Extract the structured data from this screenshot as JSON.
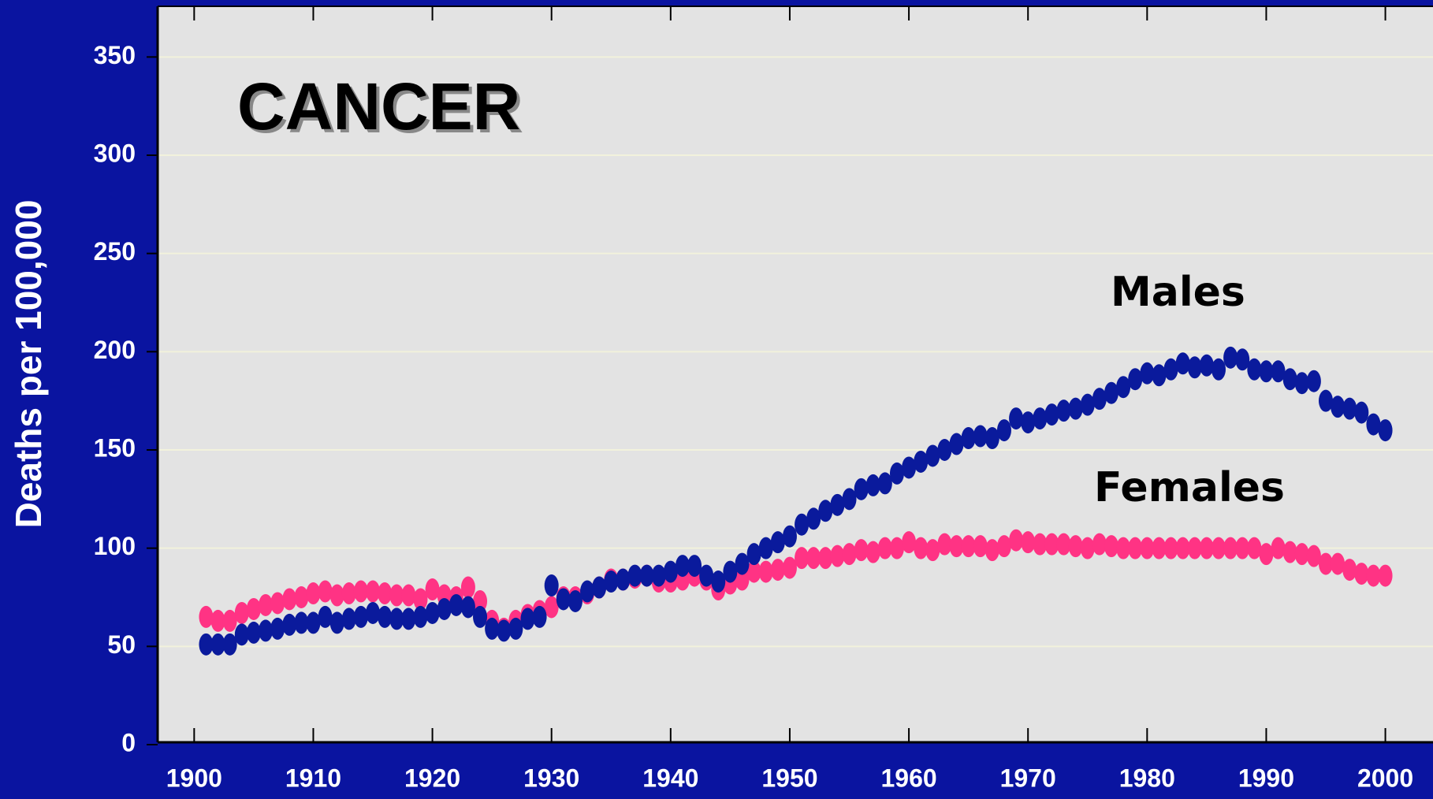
{
  "chart_data": {
    "type": "scatter",
    "y_label": "Deaths per 100,000",
    "annotations": [
      "CANCER",
      "Males",
      "Females"
    ],
    "xlim": [
      1897,
      2004
    ],
    "xticks": [
      1900,
      1910,
      1920,
      1930,
      1940,
      1950,
      1960,
      1970,
      1980,
      1990,
      2000
    ],
    "ylim": [
      0,
      375
    ],
    "yticks": [
      0,
      50,
      100,
      150,
      200,
      250,
      300,
      350
    ],
    "grid": true,
    "x": [
      1901,
      1902,
      1903,
      1904,
      1905,
      1906,
      1907,
      1908,
      1909,
      1910,
      1911,
      1912,
      1913,
      1914,
      1915,
      1916,
      1917,
      1918,
      1919,
      1920,
      1921,
      1922,
      1923,
      1924,
      1925,
      1926,
      1927,
      1928,
      1929,
      1930,
      1931,
      1932,
      1933,
      1934,
      1935,
      1936,
      1937,
      1938,
      1939,
      1940,
      1941,
      1942,
      1943,
      1944,
      1945,
      1946,
      1947,
      1948,
      1949,
      1950,
      1951,
      1952,
      1953,
      1954,
      1955,
      1956,
      1957,
      1958,
      1959,
      1960,
      1961,
      1962,
      1963,
      1964,
      1965,
      1966,
      1967,
      1968,
      1969,
      1970,
      1971,
      1972,
      1973,
      1974,
      1975,
      1976,
      1977,
      1978,
      1979,
      1980,
      1981,
      1982,
      1983,
      1984,
      1985,
      1986,
      1987,
      1988,
      1989,
      1990,
      1991,
      1992,
      1993,
      1994,
      1995,
      1996,
      1997,
      1998,
      1999,
      2000
    ],
    "series": [
      {
        "name": "Females",
        "color": "#ff3384",
        "values": [
          65,
          63,
          63,
          67,
          69,
          71,
          72,
          74,
          75,
          77,
          78,
          76,
          77,
          78,
          78,
          77,
          76,
          76,
          74,
          79,
          76,
          75,
          80,
          73,
          63,
          59,
          63,
          66,
          68,
          70,
          75,
          75,
          77,
          80,
          84,
          84,
          85,
          86,
          83,
          83,
          84,
          86,
          84,
          79,
          82,
          84,
          88,
          88,
          89,
          90,
          95,
          95,
          95,
          96,
          97,
          99,
          98,
          100,
          100,
          103,
          100,
          99,
          102,
          101,
          101,
          101,
          99,
          101,
          104,
          103,
          102,
          102,
          102,
          101,
          100,
          102,
          101,
          100,
          100,
          100,
          100,
          100,
          100,
          100,
          100,
          100,
          100,
          100,
          100,
          97,
          100,
          98,
          97,
          96,
          92,
          92,
          89,
          87,
          86,
          86
        ]
      },
      {
        "name": "Males",
        "color": "#0a1a9c",
        "values": [
          51,
          51,
          51,
          56,
          57,
          58,
          59,
          61,
          62,
          62,
          65,
          62,
          64,
          65,
          67,
          65,
          64,
          64,
          65,
          67,
          69,
          71,
          70,
          65,
          59,
          58,
          59,
          64,
          65,
          81,
          74,
          73,
          78,
          80,
          83,
          84,
          86,
          86,
          86,
          88,
          91,
          91,
          86,
          83,
          88,
          92,
          97,
          100,
          103,
          106,
          112,
          115,
          119,
          122,
          125,
          130,
          132,
          133,
          138,
          141,
          144,
          147,
          150,
          153,
          156,
          157,
          156,
          160,
          166,
          164,
          166,
          168,
          170,
          171,
          173,
          176,
          179,
          182,
          186,
          189,
          188,
          191,
          194,
          192,
          193,
          191,
          197,
          196,
          191,
          190,
          190,
          186,
          184,
          185,
          175,
          172,
          171,
          169,
          163,
          160
        ]
      }
    ]
  }
}
